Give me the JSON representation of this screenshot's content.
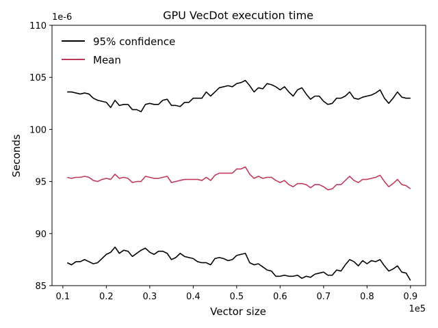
{
  "chart_data": {
    "type": "line",
    "title": "GPU VecDot execution time",
    "xlabel": "Vector size",
    "ylabel": "Seconds",
    "x_offset_label": "1e5",
    "y_offset_label": "1e-6",
    "xlim": [
      0.075,
      0.935
    ],
    "ylim": [
      85,
      110
    ],
    "xticks": [
      0.1,
      0.2,
      0.3,
      0.4,
      0.5,
      0.6,
      0.7,
      0.8,
      0.9
    ],
    "xtick_labels": [
      "0.1",
      "0.2",
      "0.3",
      "0.4",
      "0.5",
      "0.6",
      "0.7",
      "0.8",
      "0.9"
    ],
    "yticks": [
      85,
      90,
      95,
      100,
      105,
      110
    ],
    "ytick_labels": [
      "85",
      "90",
      "95",
      "100",
      "105",
      "110"
    ],
    "grid": false,
    "legend_position": "top-left",
    "x": [
      0.11,
      0.12,
      0.13,
      0.14,
      0.15,
      0.16,
      0.17,
      0.18,
      0.19,
      0.2,
      0.21,
      0.22,
      0.23,
      0.24,
      0.25,
      0.26,
      0.27,
      0.28,
      0.29,
      0.3,
      0.31,
      0.32,
      0.33,
      0.34,
      0.35,
      0.36,
      0.37,
      0.38,
      0.39,
      0.4,
      0.41,
      0.42,
      0.43,
      0.44,
      0.45,
      0.46,
      0.47,
      0.48,
      0.49,
      0.5,
      0.51,
      0.52,
      0.53,
      0.54,
      0.55,
      0.56,
      0.57,
      0.58,
      0.59,
      0.6,
      0.61,
      0.62,
      0.63,
      0.64,
      0.65,
      0.66,
      0.67,
      0.68,
      0.69,
      0.7,
      0.71,
      0.72,
      0.73,
      0.74,
      0.75,
      0.76,
      0.77,
      0.78,
      0.79,
      0.8,
      0.81,
      0.82,
      0.83,
      0.84,
      0.85,
      0.86,
      0.87,
      0.88,
      0.89,
      0.9
    ],
    "series": [
      {
        "name": "95% confidence",
        "color": "#000000",
        "values": [
          103.6,
          103.6,
          103.5,
          103.4,
          103.5,
          103.4,
          103.0,
          102.8,
          102.7,
          102.6,
          102.1,
          102.8,
          102.3,
          102.4,
          102.4,
          101.9,
          101.9,
          101.7,
          102.4,
          102.5,
          102.4,
          102.4,
          102.8,
          102.9,
          102.3,
          102.3,
          102.2,
          102.6,
          102.6,
          103.0,
          103.0,
          103.0,
          103.6,
          103.2,
          103.6,
          104.0,
          104.1,
          104.2,
          104.1,
          104.4,
          104.5,
          104.7,
          104.2,
          103.6,
          104.0,
          103.9,
          104.4,
          104.3,
          104.1,
          103.8,
          104.1,
          103.6,
          103.2,
          103.8,
          104.0,
          103.4,
          102.9,
          103.2,
          103.2,
          102.7,
          102.4,
          102.5,
          103.0,
          103.0,
          103.2,
          103.6,
          103.0,
          102.9,
          103.1,
          103.2,
          103.3,
          103.5,
          103.8,
          103.0,
          102.5,
          103.0,
          103.6,
          103.1,
          103.0,
          103.0
        ]
      },
      {
        "name": "Mean",
        "color": "#c0395a",
        "values": [
          95.4,
          95.3,
          95.4,
          95.4,
          95.5,
          95.4,
          95.1,
          95.0,
          95.2,
          95.3,
          95.2,
          95.7,
          95.3,
          95.4,
          95.3,
          94.9,
          95.0,
          95.0,
          95.5,
          95.4,
          95.3,
          95.3,
          95.4,
          95.5,
          94.9,
          95.0,
          95.1,
          95.2,
          95.2,
          95.2,
          95.2,
          95.1,
          95.4,
          95.1,
          95.6,
          95.8,
          95.8,
          95.8,
          95.8,
          96.2,
          96.2,
          96.4,
          95.7,
          95.3,
          95.5,
          95.3,
          95.4,
          95.4,
          95.1,
          94.9,
          95.1,
          94.7,
          94.5,
          94.8,
          94.8,
          94.7,
          94.4,
          94.7,
          94.7,
          94.5,
          94.2,
          94.3,
          94.7,
          94.7,
          95.1,
          95.5,
          95.1,
          94.9,
          95.2,
          95.2,
          95.3,
          95.4,
          95.6,
          95.0,
          94.5,
          94.8,
          95.2,
          94.7,
          94.6,
          94.3
        ]
      },
      {
        "name": "95% confidence",
        "color": "#000000",
        "values": [
          87.2,
          87.0,
          87.3,
          87.3,
          87.5,
          87.3,
          87.1,
          87.2,
          87.6,
          88.0,
          88.2,
          88.7,
          88.1,
          88.4,
          88.3,
          87.8,
          88.1,
          88.4,
          88.6,
          88.2,
          88.0,
          88.3,
          88.3,
          88.1,
          87.5,
          87.7,
          88.1,
          87.8,
          87.7,
          87.6,
          87.3,
          87.2,
          87.2,
          87.0,
          87.6,
          87.7,
          87.6,
          87.4,
          87.5,
          87.9,
          88.0,
          88.1,
          87.2,
          87.0,
          87.1,
          86.8,
          86.5,
          86.4,
          85.9,
          85.9,
          86.0,
          85.9,
          85.9,
          86.0,
          85.7,
          85.9,
          85.8,
          86.1,
          86.2,
          86.3,
          86.0,
          86.0,
          86.5,
          86.4,
          87.0,
          87.5,
          87.3,
          86.9,
          87.4,
          87.1,
          87.4,
          87.3,
          87.5,
          86.9,
          86.4,
          86.6,
          86.9,
          86.3,
          86.2,
          85.5
        ]
      }
    ]
  },
  "legend": {
    "items": [
      {
        "label": "95% confidence",
        "color": "#000000"
      },
      {
        "label": "Mean",
        "color": "#c0395a"
      }
    ]
  }
}
